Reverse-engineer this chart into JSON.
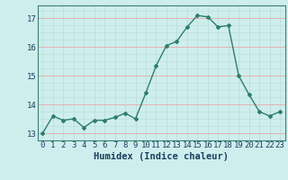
{
  "x": [
    0,
    1,
    2,
    3,
    4,
    5,
    6,
    7,
    8,
    9,
    10,
    11,
    12,
    13,
    14,
    15,
    16,
    17,
    18,
    19,
    20,
    21,
    22,
    23
  ],
  "y": [
    13.0,
    13.6,
    13.45,
    13.5,
    13.2,
    13.45,
    13.45,
    13.55,
    13.7,
    13.5,
    14.4,
    15.35,
    16.05,
    16.2,
    16.7,
    17.1,
    17.05,
    16.7,
    16.75,
    15.0,
    14.35,
    13.75,
    13.6,
    13.75
  ],
  "line_color": "#2e7d6e",
  "marker": "D",
  "markersize": 2.0,
  "linewidth": 1.0,
  "bg_color": "#ceeeed",
  "grid_color": "#b8dbd9",
  "red_line_color": "#e8a8a8",
  "xlabel": "Humidex (Indice chaleur)",
  "ylabel_ticks": [
    13,
    14,
    15,
    16,
    17
  ],
  "xlim": [
    -0.5,
    23.5
  ],
  "ylim": [
    12.75,
    17.45
  ],
  "xlabel_fontsize": 7.5,
  "tick_fontsize": 6.5,
  "tick_color": "#1a4060",
  "spine_color": "#3a8070"
}
